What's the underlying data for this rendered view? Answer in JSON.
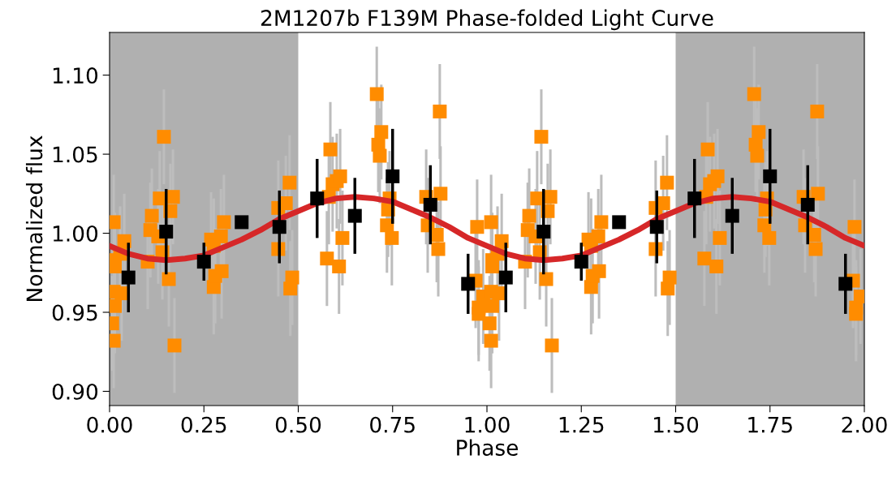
{
  "chart_data": {
    "type": "scatter",
    "title": "2M1207b F139M Phase-folded Light Curve",
    "xlabel": "Phase",
    "ylabel": "Normalized flux",
    "xlim": [
      0,
      2
    ],
    "ylim": [
      0.891,
      1.127
    ],
    "xticks": [
      {
        "value": 0,
        "label": "0.00"
      },
      {
        "value": 0.25,
        "label": "0.25"
      },
      {
        "value": 0.5,
        "label": "0.50"
      },
      {
        "value": 0.75,
        "label": "0.75"
      },
      {
        "value": 1,
        "label": "1.00"
      },
      {
        "value": 1.25,
        "label": "1.25"
      },
      {
        "value": 1.5,
        "label": "1.50"
      },
      {
        "value": 1.75,
        "label": "1.75"
      },
      {
        "value": 2,
        "label": "2.00"
      }
    ],
    "yticks": [
      {
        "value": 0.9,
        "label": "0.90"
      },
      {
        "value": 0.95,
        "label": "0.95"
      },
      {
        "value": 1.0,
        "label": "1.00"
      },
      {
        "value": 1.05,
        "label": "1.05"
      },
      {
        "value": 1.1,
        "label": "1.10"
      }
    ],
    "marker": "square",
    "grid": false,
    "legend": false,
    "bands": [
      {
        "axis": "x",
        "from": 0,
        "to": 0.5,
        "color": "#b0b0b0"
      },
      {
        "axis": "x",
        "from": 1.5,
        "to": 2.0,
        "color": "#b0b0b0"
      }
    ],
    "series": [
      {
        "color": "#ff8c00",
        "x": [
          0.007,
          0.011,
          0.011,
          0.011,
          0.014,
          0.014,
          0.014,
          0.028,
          0.032,
          0.039,
          0.101,
          0.108,
          0.112,
          0.129,
          0.133,
          0.14,
          0.144,
          0.157,
          0.161,
          0.168,
          0.172,
          0.269,
          0.276,
          0.276,
          0.28,
          0.295,
          0.297,
          0.303,
          0.447,
          0.447,
          0.467,
          0.477,
          0.479,
          0.484,
          0.576,
          0.581,
          0.585,
          0.591,
          0.602,
          0.608,
          0.611,
          0.617,
          0.708,
          0.712,
          0.716,
          0.72,
          0.735,
          0.738,
          0.742,
          0.748,
          0.839,
          0.843,
          0.867,
          0.871,
          0.875,
          0.877,
          0.97,
          0.974,
          0.978,
          0.978,
          0.99,
          1.007,
          1.011,
          1.011,
          1.011,
          1.014,
          1.014,
          1.014,
          1.028,
          1.032,
          1.039,
          1.101,
          1.108,
          1.112,
          1.129,
          1.133,
          1.14,
          1.144,
          1.157,
          1.161,
          1.168,
          1.172,
          1.269,
          1.276,
          1.276,
          1.28,
          1.295,
          1.297,
          1.303,
          1.447,
          1.447,
          1.467,
          1.477,
          1.479,
          1.484,
          1.576,
          1.581,
          1.585,
          1.591,
          1.602,
          1.608,
          1.611,
          1.617,
          1.708,
          1.712,
          1.716,
          1.72,
          1.735,
          1.738,
          1.742,
          1.748,
          1.839,
          1.843,
          1.867,
          1.871,
          1.875,
          1.877,
          1.97,
          1.974,
          1.978,
          1.978,
          1.99
        ],
        "values": [
          0.943,
          0.932,
          1.007,
          0.963,
          0.983,
          0.979,
          0.954,
          0.987,
          0.962,
          0.995,
          0.982,
          1.002,
          1.011,
          0.998,
          1.022,
          0.988,
          1.061,
          0.971,
          1.014,
          1.023,
          0.929,
          0.996,
          0.992,
          0.966,
          0.973,
          0.998,
          0.976,
          1.007,
          1.016,
          0.99,
          1.019,
          1.032,
          0.965,
          0.972,
          0.984,
          1.023,
          1.053,
          1.031,
          1.033,
          0.979,
          1.036,
          0.997,
          1.088,
          1.056,
          1.049,
          1.064,
          1.005,
          1.015,
          1.022,
          0.997,
          1.023,
          1.005,
          0.999,
          0.99,
          1.077,
          1.025,
          0.97,
          1.004,
          0.953,
          0.949,
          0.96,
          0.943,
          0.932,
          1.007,
          0.963,
          0.983,
          0.979,
          0.954,
          0.987,
          0.962,
          0.995,
          0.982,
          1.002,
          1.011,
          0.998,
          1.022,
          0.988,
          1.061,
          0.971,
          1.014,
          1.023,
          0.929,
          0.996,
          0.992,
          0.966,
          0.973,
          0.998,
          0.976,
          1.007,
          1.016,
          0.99,
          1.019,
          1.032,
          0.965,
          0.972,
          0.984,
          1.023,
          1.053,
          1.031,
          1.033,
          0.979,
          1.036,
          0.997,
          1.088,
          1.056,
          1.049,
          1.064,
          1.005,
          1.015,
          1.022,
          0.997,
          1.023,
          1.005,
          0.999,
          0.99,
          1.077,
          1.025,
          0.97,
          1.004,
          0.953,
          0.949,
          0.96
        ],
        "errors": [
          0.03,
          0.03,
          0.03,
          0.03,
          0.03,
          0.03,
          0.03,
          0.03,
          0.03,
          0.03,
          0.03,
          0.03,
          0.03,
          0.03,
          0.03,
          0.03,
          0.03,
          0.03,
          0.03,
          0.03,
          0.03,
          0.03,
          0.03,
          0.03,
          0.03,
          0.03,
          0.03,
          0.03,
          0.03,
          0.03,
          0.03,
          0.03,
          0.03,
          0.03,
          0.03,
          0.03,
          0.03,
          0.03,
          0.03,
          0.03,
          0.03,
          0.03,
          0.03,
          0.03,
          0.03,
          0.03,
          0.03,
          0.03,
          0.03,
          0.03,
          0.03,
          0.03,
          0.03,
          0.03,
          0.03,
          0.03,
          0.03,
          0.03,
          0.03,
          0.03,
          0.03,
          0.03,
          0.03,
          0.03,
          0.03,
          0.03,
          0.03,
          0.03,
          0.03,
          0.03,
          0.03,
          0.03,
          0.03,
          0.03,
          0.03,
          0.03,
          0.03,
          0.03,
          0.03,
          0.03,
          0.03,
          0.03,
          0.03,
          0.03,
          0.03,
          0.03,
          0.03,
          0.03,
          0.03,
          0.03,
          0.03,
          0.03,
          0.03,
          0.03,
          0.03,
          0.03,
          0.03,
          0.03,
          0.03,
          0.03,
          0.03,
          0.03,
          0.03,
          0.03,
          0.03,
          0.03,
          0.03,
          0.03,
          0.03,
          0.03,
          0.03,
          0.03,
          0.03,
          0.03,
          0.03,
          0.03,
          0.03,
          0.03,
          0.03,
          0.03,
          0.03,
          0.03
        ]
      },
      {
        "type": "line",
        "marker": "none",
        "color": "#d62728",
        "x": [
          0,
          0.05,
          0.1,
          0.15,
          0.2,
          0.25,
          0.3,
          0.35,
          0.4,
          0.45,
          0.5,
          0.55,
          0.6,
          0.65,
          0.7,
          0.75,
          0.8,
          0.85,
          0.9,
          0.95,
          1.0,
          1.05,
          1.1,
          1.15,
          1.2,
          1.25,
          1.3,
          1.35,
          1.4,
          1.45,
          1.5,
          1.55,
          1.6,
          1.65,
          1.7,
          1.75,
          1.8,
          1.85,
          1.9,
          1.95,
          2.0
        ],
        "values": [
          0.992,
          0.987,
          0.984,
          0.983,
          0.984,
          0.986,
          0.991,
          0.996,
          1.002,
          1.009,
          1.014,
          1.019,
          1.022,
          1.023,
          1.022,
          1.02,
          1.015,
          1.01,
          1.004,
          0.997,
          0.992,
          0.987,
          0.984,
          0.983,
          0.984,
          0.986,
          0.991,
          0.996,
          1.002,
          1.009,
          1.014,
          1.019,
          1.022,
          1.023,
          1.022,
          1.02,
          1.015,
          1.01,
          1.004,
          0.997,
          0.992
        ]
      },
      {
        "color": "#000000",
        "x": [
          0.05,
          0.15,
          0.25,
          0.35,
          0.45,
          0.55,
          0.65,
          0.75,
          0.85,
          0.95,
          1.05,
          1.15,
          1.25,
          1.35,
          1.45,
          1.55,
          1.65,
          1.75,
          1.85,
          1.95
        ],
        "values": [
          0.972,
          1.001,
          0.982,
          1.007,
          1.004,
          1.022,
          1.011,
          1.036,
          1.018,
          0.968,
          0.972,
          1.001,
          0.982,
          1.007,
          1.004,
          1.022,
          1.011,
          1.036,
          1.018,
          0.968
        ],
        "errors": [
          0.022,
          0.027,
          0.012,
          null,
          0.023,
          0.025,
          0.024,
          0.03,
          0.025,
          0.019,
          0.022,
          0.027,
          0.012,
          null,
          0.023,
          0.025,
          0.024,
          0.03,
          0.025,
          0.019
        ]
      }
    ]
  }
}
